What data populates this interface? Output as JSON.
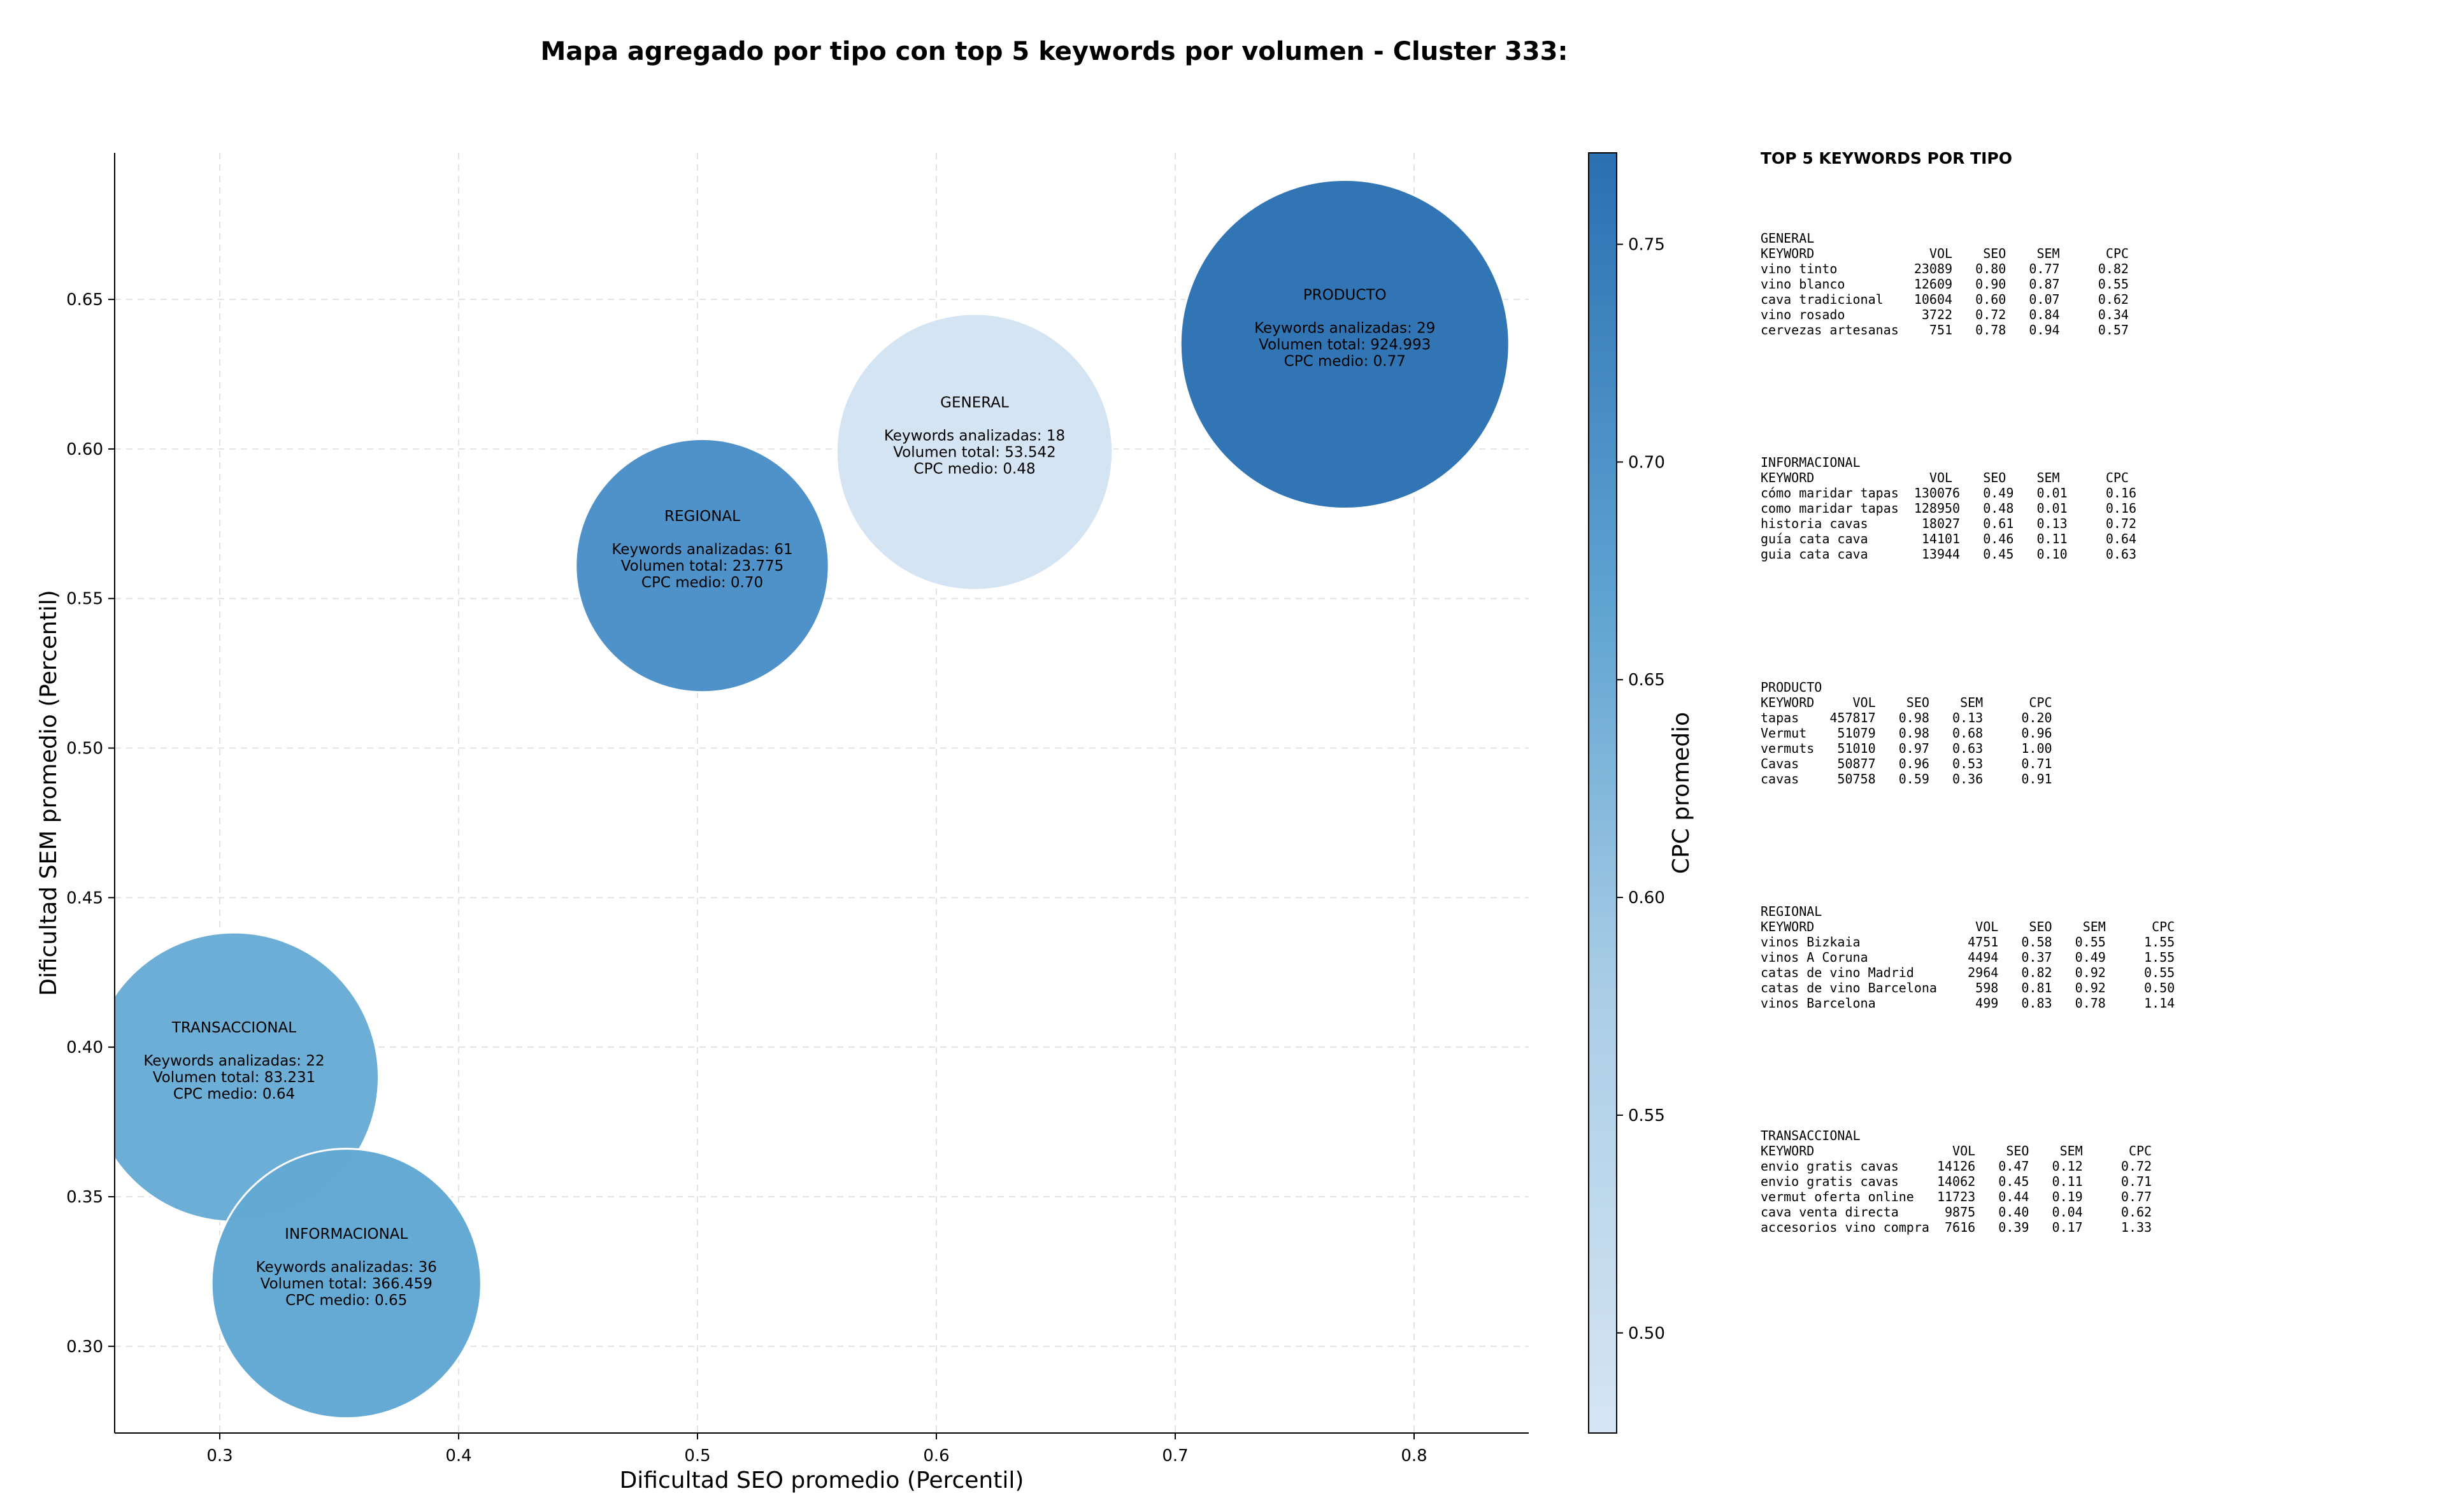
{
  "chart_data": {
    "type": "scatter",
    "title": "Mapa agregado por tipo con top 5 keywords por volumen - Cluster 333:",
    "xlabel": "Dificultad SEO promedio (Percentil)",
    "ylabel": "Dificultad SEM promedio (Percentil)",
    "xlim": [
      0.256,
      0.848
    ],
    "ylim": [
      0.271,
      0.699
    ],
    "xticks": [
      0.3,
      0.4,
      0.5,
      0.6,
      0.7,
      0.8
    ],
    "xtick_labels": [
      "0.3",
      "0.4",
      "0.5",
      "0.6",
      "0.7",
      "0.8"
    ],
    "yticks": [
      0.3,
      0.35,
      0.4,
      0.45,
      0.5,
      0.55,
      0.6,
      0.65
    ],
    "ytick_labels": [
      "0.30",
      "0.35",
      "0.40",
      "0.45",
      "0.50",
      "0.55",
      "0.60",
      "0.65"
    ],
    "grid": true,
    "colorbar": {
      "label": "CPC promedio",
      "range": [
        0.477,
        0.771
      ],
      "ticks": [
        0.5,
        0.55,
        0.6,
        0.65,
        0.7,
        0.75
      ],
      "tick_labels": [
        "0.50",
        "0.55",
        "0.60",
        "0.65",
        "0.70",
        "0.75"
      ],
      "color_low": "#d4e3f2",
      "color_high": "#2b72b3"
    },
    "points": [
      {
        "type": "PRODUCTO",
        "x": 0.771,
        "y": 0.635,
        "keywords": 29,
        "volume": 924993,
        "cpc": 0.77,
        "color": "#2d72b3",
        "size_rel": 1.0,
        "label_lines": [
          "PRODUCTO",
          "",
          "Keywords analizadas: 29",
          "Volumen total: 924.993",
          "CPC medio: 0.77"
        ]
      },
      {
        "type": "GENERAL",
        "x": 0.616,
        "y": 0.599,
        "keywords": 18,
        "volume": 53542,
        "cpc": 0.48,
        "color": "#d4e3f2",
        "size_rel": 0.84,
        "label_lines": [
          "GENERAL",
          "",
          "Keywords analizadas: 18",
          "Volumen total: 53.542",
          "CPC medio: 0.48"
        ]
      },
      {
        "type": "REGIONAL",
        "x": 0.502,
        "y": 0.561,
        "keywords": 61,
        "volume": 23775,
        "cpc": 0.7,
        "color": "#4a90c8",
        "size_rel": 0.77,
        "label_lines": [
          "REGIONAL",
          "",
          "Keywords analizadas: 61",
          "Volumen total: 23.775",
          "CPC medio: 0.70"
        ]
      },
      {
        "type": "TRANSACCIONAL",
        "x": 0.306,
        "y": 0.39,
        "keywords": 22,
        "volume": 83231,
        "cpc": 0.64,
        "color": "#6aacd5",
        "size_rel": 0.88,
        "label_lines": [
          "TRANSACCIONAL",
          "",
          "Keywords analizadas: 22",
          "Volumen total: 83.231",
          "CPC medio: 0.64"
        ]
      },
      {
        "type": "INFORMACIONAL",
        "x": 0.353,
        "y": 0.321,
        "keywords": 36,
        "volume": 366459,
        "cpc": 0.65,
        "color": "#62a8d3",
        "size_rel": 0.82,
        "label_lines": [
          "INFORMACIONAL",
          "",
          "Keywords analizadas: 36",
          "Volumen total: 366.459",
          "CPC medio: 0.65"
        ]
      }
    ]
  },
  "side": {
    "title": "TOP 5 KEYWORDS POR TIPO",
    "blocks": [
      {
        "text": "GENERAL\nKEYWORD               VOL    SEO    SEM      CPC\nvino tinto          23089   0.80   0.77     0.82\nvino blanco         12609   0.90   0.87     0.55\ncava tradicional    10604   0.60   0.07     0.62\nvino rosado          3722   0.72   0.84     0.34\ncervezas artesanas    751   0.78   0.94     0.57"
      },
      {
        "text": "INFORMACIONAL\nKEYWORD               VOL    SEO    SEM      CPC\ncómo maridar tapas  130076   0.49   0.01     0.16\ncomo maridar tapas  128950   0.48   0.01     0.16\nhistoria cavas       18027   0.61   0.13     0.72\nguía cata cava       14101   0.46   0.11     0.64\nguia cata cava       13944   0.45   0.10     0.63"
      },
      {
        "text": "PRODUCTO\nKEYWORD     VOL    SEO    SEM      CPC\ntapas    457817   0.98   0.13     0.20\nVermut    51079   0.98   0.68     0.96\nvermuts   51010   0.97   0.63     1.00\nCavas     50877   0.96   0.53     0.71\ncavas     50758   0.59   0.36     0.91"
      },
      {
        "text": "REGIONAL\nKEYWORD                     VOL    SEO    SEM      CPC\nvinos Bizkaia              4751   0.58   0.55     1.55\nvinos A Coruna             4494   0.37   0.49     1.55\ncatas de vino Madrid       2964   0.82   0.92     0.55\ncatas de vino Barcelona     598   0.81   0.92     0.50\nvinos Barcelona             499   0.83   0.78     1.14"
      },
      {
        "text": "TRANSACCIONAL\nKEYWORD                  VOL    SEO    SEM      CPC\nenvio gratis cavas     14126   0.47   0.12     0.72\nenvio gratis cavas     14062   0.45   0.11     0.71\nvermut oferta online   11723   0.44   0.19     0.77\ncava venta directa      9875   0.40   0.04     0.62\naccesorios vino compra  7616   0.39   0.17     1.33"
      }
    ]
  }
}
